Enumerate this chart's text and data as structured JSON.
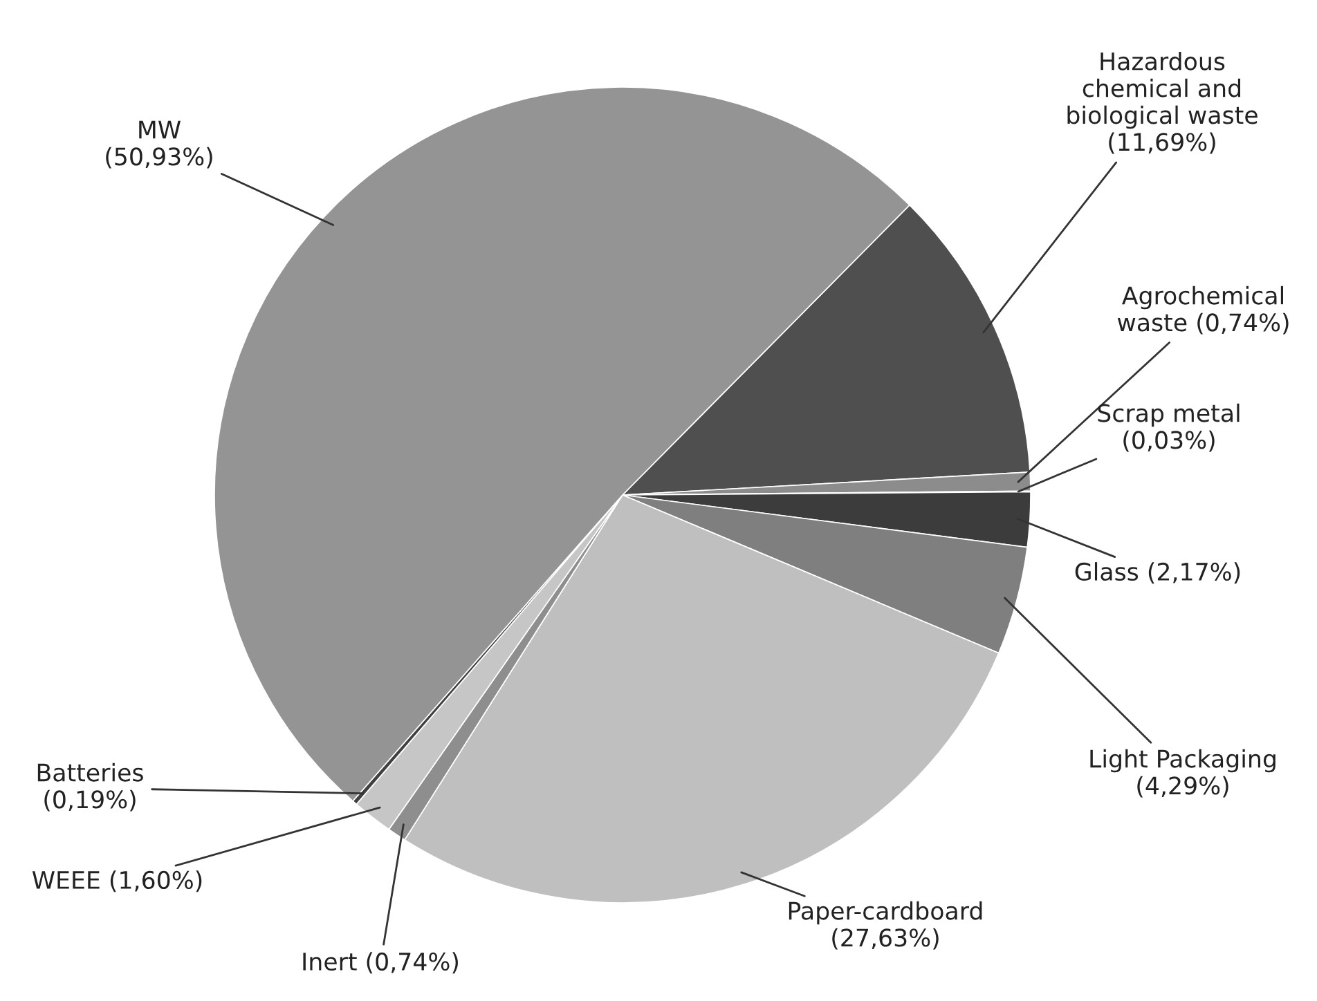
{
  "chart_data": {
    "type": "pie",
    "categories": [
      "Hazardous\nchemical and\nbiological waste",
      "Agrochemical\nwaste",
      "Scrap metal",
      "Glass",
      "Light Packaging",
      "Paper-cardboard",
      "Inert",
      "WEEE",
      "Batteries",
      "MW"
    ],
    "values": [
      11.69,
      0.74,
      0.03,
      2.17,
      4.29,
      27.63,
      0.74,
      1.6,
      0.19,
      50.93
    ],
    "value_labels": [
      "(11,69%)",
      "(0,74%)",
      "(0,03%)",
      "(2,17%)",
      "(4,29%)",
      "(27,63%)",
      "(0,74%)",
      "(1,60%)",
      "(0,19%)",
      "(50,93%)"
    ],
    "colors": [
      "#4f4f4f",
      "#8c8c8c",
      "#6e6e6e",
      "#3c3c3c",
      "#7f7f7f",
      "#bfbfbf",
      "#8e8e8e",
      "#c6c6c6",
      "#404040",
      "#949494"
    ],
    "legend": false
  }
}
